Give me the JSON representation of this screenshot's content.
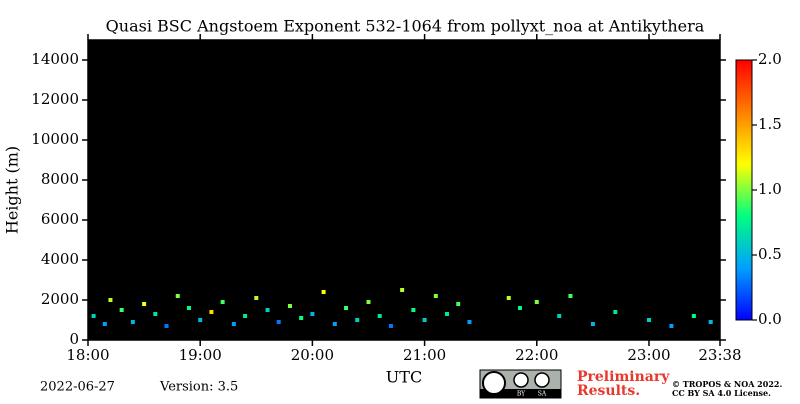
{
  "chart_data": {
    "type": "heatmap",
    "title": "Quasi BSC Angstoem Exponent 532-1064 from pollyxt_noa at Antikythera",
    "xlabel": "UTC",
    "ylabel": "Height (m)",
    "xlim": [
      18,
      23.633
    ],
    "xticks": [
      {
        "value": 18,
        "label": "18:00"
      },
      {
        "value": 19,
        "label": "19:00"
      },
      {
        "value": 20,
        "label": "20:00"
      },
      {
        "value": 21,
        "label": "21:00"
      },
      {
        "value": 22,
        "label": "22:00"
      },
      {
        "value": 23,
        "label": "23:00"
      },
      {
        "value": 23.633,
        "label": "23:38"
      }
    ],
    "ylim": [
      0,
      15000
    ],
    "yticks": [
      0,
      2000,
      4000,
      6000,
      8000,
      10000,
      12000,
      14000
    ],
    "clim": [
      0,
      2
    ],
    "cticks": [
      {
        "value": 0,
        "label": "0.0"
      },
      {
        "value": 0.5,
        "label": "0.5"
      },
      {
        "value": 1,
        "label": "1.0"
      },
      {
        "value": 1.5,
        "label": "1.5"
      },
      {
        "value": 2,
        "label": "2.0"
      }
    ],
    "colormap": [
      "#0000ff",
      "#00a0ff",
      "#00ff80",
      "#ffff00",
      "#ff8000",
      "#ff0000"
    ],
    "background": "#000000",
    "points": {
      "x": [
        18.05,
        18.15,
        18.2,
        18.3,
        18.4,
        18.5,
        18.6,
        18.7,
        18.8,
        18.9,
        19.0,
        19.1,
        19.2,
        19.3,
        19.4,
        19.5,
        19.6,
        19.7,
        19.8,
        19.9,
        20.0,
        20.1,
        20.2,
        20.3,
        20.4,
        20.5,
        20.6,
        20.7,
        20.8,
        20.9,
        21.0,
        21.1,
        21.2,
        21.3,
        21.4,
        21.75,
        21.85,
        22.0,
        22.2,
        22.3,
        22.5,
        22.7,
        23.0,
        23.2,
        23.4,
        23.55
      ],
      "y": [
        1200,
        800,
        2000,
        1500,
        900,
        1800,
        1300,
        700,
        2200,
        1600,
        1000,
        1400,
        1900,
        800,
        1200,
        2100,
        1500,
        900,
        1700,
        1100,
        1300,
        2400,
        800,
        1600,
        1000,
        1900,
        1200,
        700,
        2500,
        1500,
        1000,
        2200,
        1300,
        1800,
        900,
        2100,
        1600,
        1900,
        1200,
        2200,
        800,
        1400,
        1000,
        700,
        1200,
        900
      ],
      "values": [
        0.6,
        0.4,
        1.1,
        0.9,
        0.5,
        1.2,
        0.7,
        0.3,
        1.0,
        0.8,
        0.5,
        1.3,
        0.9,
        0.4,
        0.7,
        1.1,
        0.6,
        0.3,
        1.0,
        0.8,
        0.5,
        1.2,
        0.4,
        0.9,
        0.6,
        1.0,
        0.7,
        0.3,
        1.1,
        0.8,
        0.6,
        1.0,
        0.7,
        0.9,
        0.4,
        1.1,
        0.8,
        1.0,
        0.6,
        0.9,
        0.5,
        0.7,
        0.6,
        0.4,
        0.8,
        0.5
      ]
    }
  },
  "footer": {
    "date": "2022-06-27",
    "version": "Version: 3.5",
    "badge": [
      "BY",
      "SA"
    ],
    "preliminary": [
      "Preliminary",
      "Results."
    ],
    "license": [
      "© TROPOS & NOA 2022.",
      "CC BY SA 4.0 License."
    ]
  }
}
